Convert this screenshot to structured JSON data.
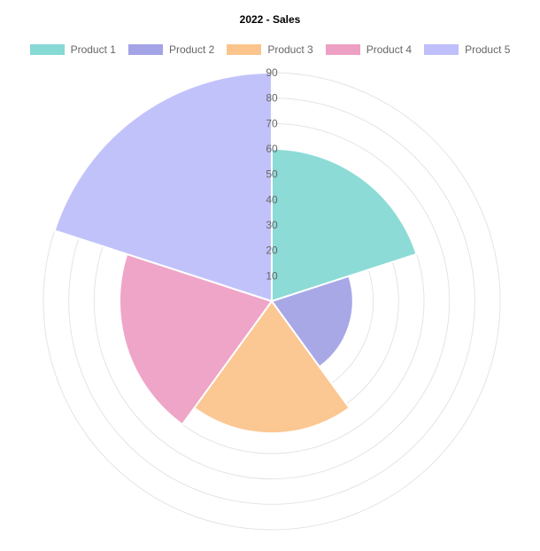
{
  "chart_data": {
    "type": "polarArea",
    "title": "2022 - Sales",
    "categories": [
      "Product 1",
      "Product 2",
      "Product 3",
      "Product 4",
      "Product 5"
    ],
    "values": [
      60,
      32,
      52,
      60,
      90
    ],
    "colors": [
      "#86d9d4",
      "#a3a3e6",
      "#fbc48c",
      "#eea0c4",
      "#bfbffb"
    ],
    "rlim": [
      0,
      90
    ],
    "ticks": [
      10,
      20,
      30,
      40,
      50,
      60,
      70,
      80,
      90
    ],
    "grid": true,
    "legend": "top"
  },
  "legend": {
    "items": [
      {
        "label": "Product 1",
        "color": "#86d9d4"
      },
      {
        "label": "Product 2",
        "color": "#a3a3e6"
      },
      {
        "label": "Product 3",
        "color": "#fbc48c"
      },
      {
        "label": "Product 4",
        "color": "#eea0c4"
      },
      {
        "label": "Product 5",
        "color": "#bfbffb"
      }
    ]
  }
}
